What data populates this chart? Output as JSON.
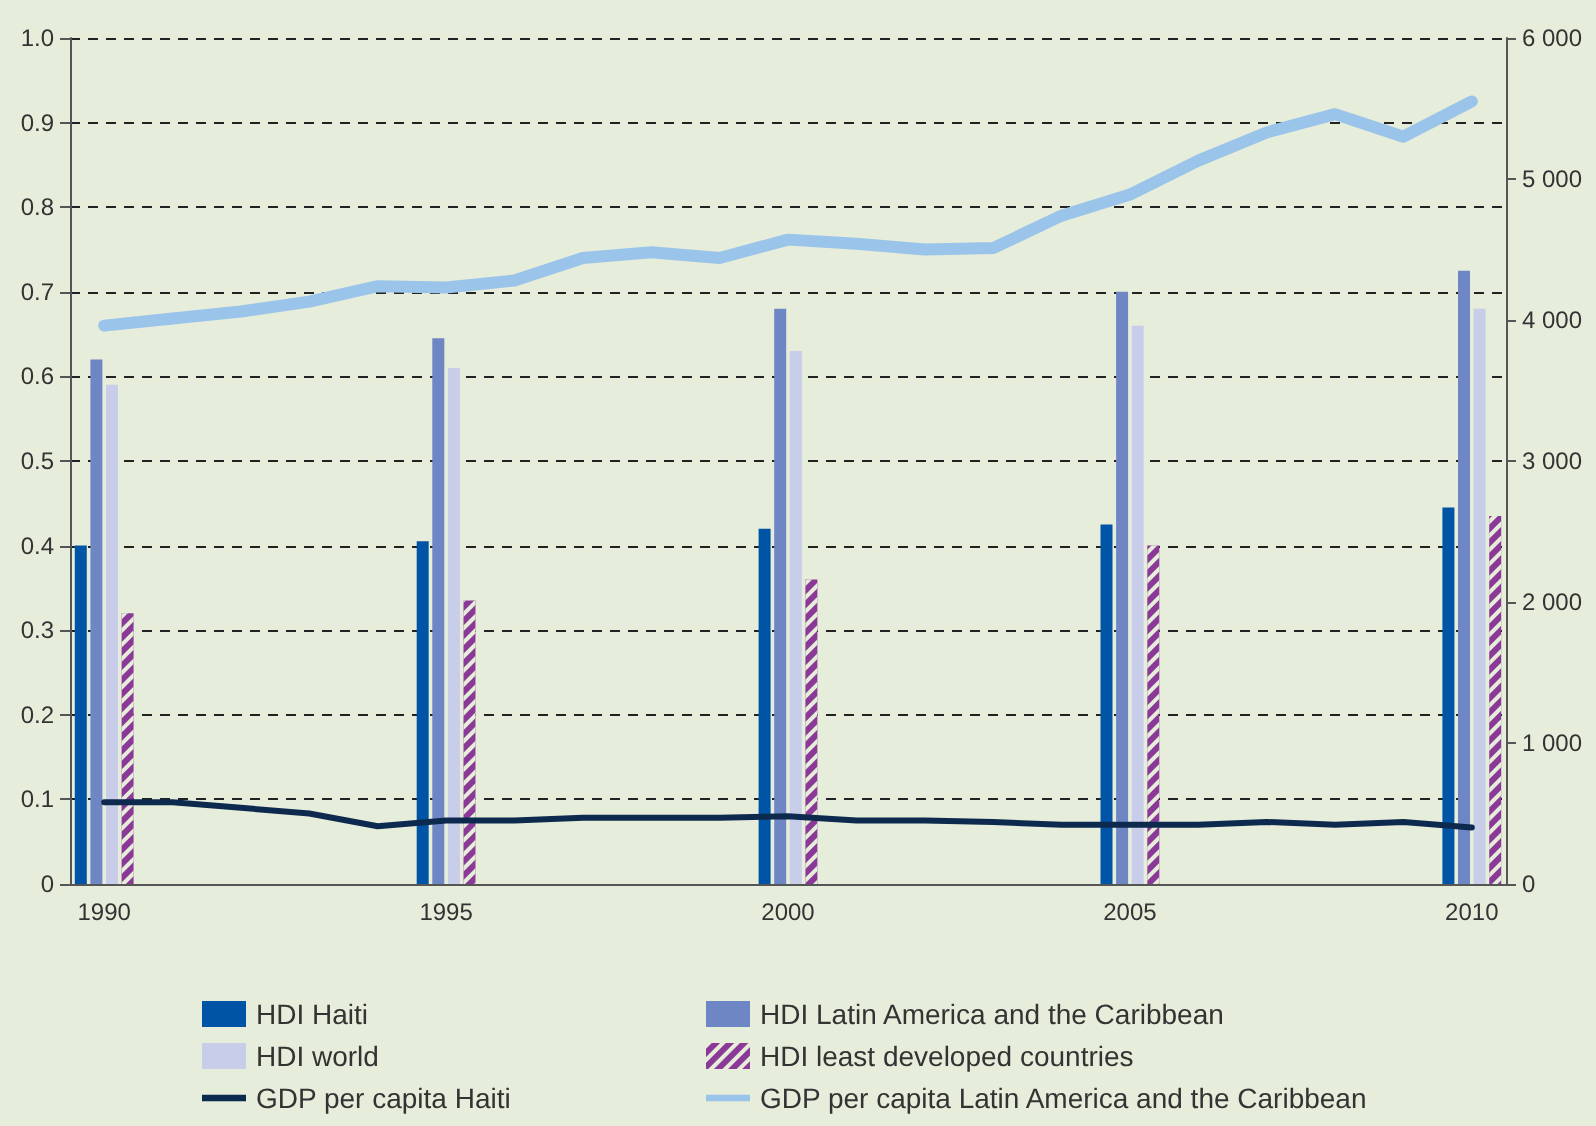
{
  "chart_data": {
    "type": "bar",
    "categories": [
      "1990",
      null,
      null,
      null,
      null,
      "1995",
      null,
      null,
      null,
      null,
      "2000",
      null,
      null,
      null,
      null,
      "2005",
      null,
      null,
      null,
      null,
      "2010"
    ],
    "series": [
      {
        "name": "HDI Haiti",
        "color": "#0054a6",
        "values": [
          0.4,
          null,
          null,
          null,
          null,
          0.405,
          null,
          null,
          null,
          null,
          0.42,
          null,
          null,
          null,
          null,
          0.425,
          null,
          null,
          null,
          null,
          0.445
        ]
      },
      {
        "name": "HDI Latin America and the Caribbean",
        "color": "#6f86c4",
        "values": [
          0.62,
          null,
          null,
          null,
          null,
          0.645,
          null,
          null,
          null,
          null,
          0.68,
          null,
          null,
          null,
          null,
          0.7,
          null,
          null,
          null,
          null,
          0.725
        ]
      },
      {
        "name": "HDI world",
        "color": "#c8cde9",
        "values": [
          0.59,
          null,
          null,
          null,
          null,
          0.61,
          null,
          null,
          null,
          null,
          0.63,
          null,
          null,
          null,
          null,
          0.66,
          null,
          null,
          null,
          null,
          0.68
        ]
      },
      {
        "name": "HDI least developed countries",
        "color": "#8a3a96",
        "values": [
          0.32,
          null,
          null,
          null,
          null,
          0.335,
          null,
          null,
          null,
          null,
          0.36,
          null,
          null,
          null,
          null,
          0.4,
          null,
          null,
          null,
          null,
          0.435
        ]
      },
      {
        "name": "GDP per capita Haiti",
        "type": "line",
        "axis": "y2",
        "color": "#0d2a4e",
        "values": [
          580,
          580,
          540,
          500,
          410,
          450,
          450,
          470,
          470,
          470,
          480,
          450,
          450,
          440,
          420,
          420,
          420,
          440,
          420,
          440,
          400
        ]
      },
      {
        "name": "GDP per capita Latin America and the Caribbean",
        "type": "line",
        "axis": "y2",
        "color": "#9bc4ea",
        "values": [
          3960,
          4010,
          4060,
          4130,
          4240,
          4230,
          4280,
          4440,
          4480,
          4440,
          4570,
          4540,
          4500,
          4510,
          4740,
          4890,
          5130,
          5330,
          5460,
          5300,
          5550
        ]
      }
    ],
    "ylim": [
      0,
      1
    ],
    "yticks": [
      0,
      0.1,
      0.2,
      0.3,
      0.4,
      0.5,
      0.6,
      0.7,
      0.8,
      0.9,
      {
        "value": 1,
        "label": "1.0"
      }
    ],
    "y2lim": [
      0,
      6000
    ],
    "y2ticks": [
      0,
      {
        "value": 1000,
        "label": "1 000"
      },
      {
        "value": 2000,
        "label": "2 000"
      },
      {
        "value": 3000,
        "label": "3 000"
      },
      {
        "value": 4000,
        "label": "4 000"
      },
      {
        "value": 5000,
        "label": "5 000"
      },
      {
        "value": 6000,
        "label": "6 000"
      }
    ],
    "grid": "y",
    "legend": "bottom",
    "marker": "none",
    "line_style": "solid"
  }
}
